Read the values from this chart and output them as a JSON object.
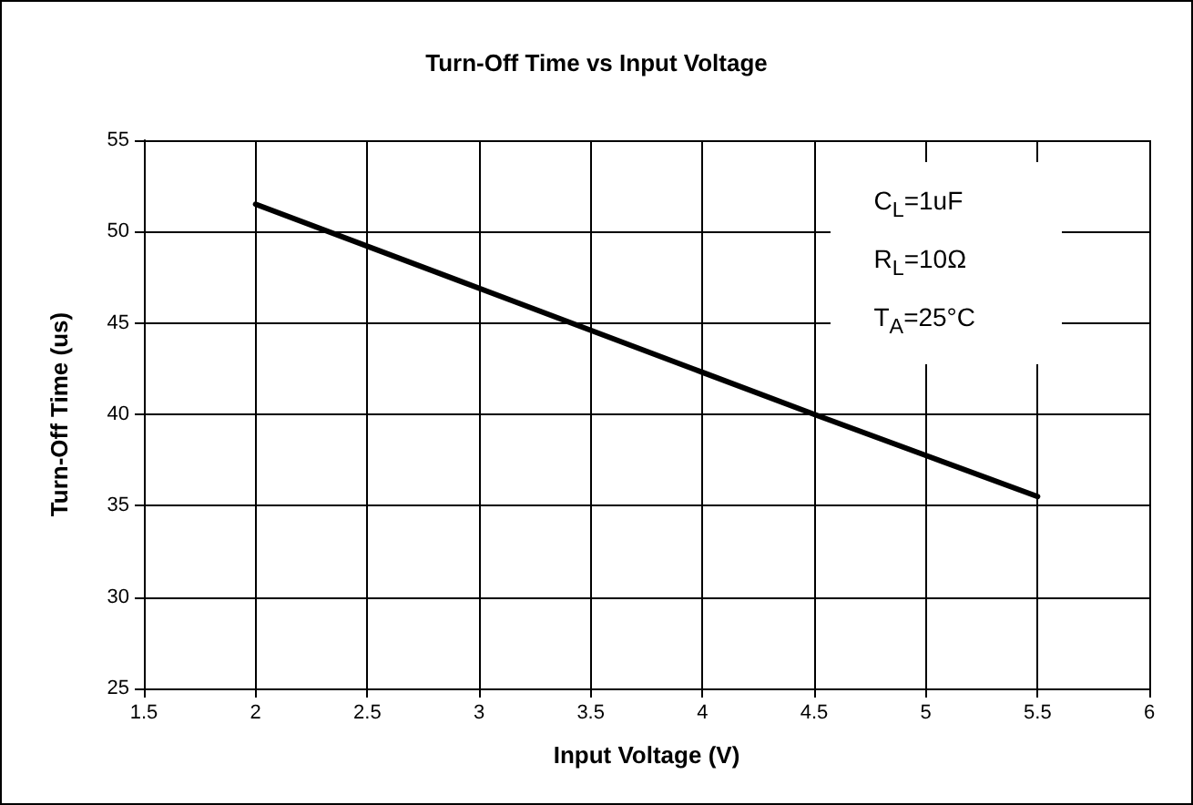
{
  "chart_data": {
    "type": "line",
    "title": "Turn-Off Time vs Input Voltage",
    "xlabel": "Input Voltage (V)",
    "ylabel": "Turn-Off Time (us)",
    "x": [
      2,
      3,
      4,
      4.5,
      5.5
    ],
    "series": [
      {
        "color": "#000000",
        "values": [
          51.5,
          46.9,
          42.3,
          40,
          35.5
        ]
      }
    ],
    "xlim": [
      1.5,
      6
    ],
    "xticks": [
      1.5,
      2,
      2.5,
      3,
      3.5,
      4,
      4.5,
      5,
      5.5,
      6
    ],
    "ylim": [
      25,
      55
    ],
    "yticks": [
      25,
      30,
      35,
      40,
      45,
      50,
      55
    ],
    "grid": true,
    "marker": "none",
    "line_style": "solid",
    "annotations": [
      "C$_{L}$=1uF",
      "R$_{L}$=10Ω",
      "T$_{A}$=25°C"
    ]
  }
}
